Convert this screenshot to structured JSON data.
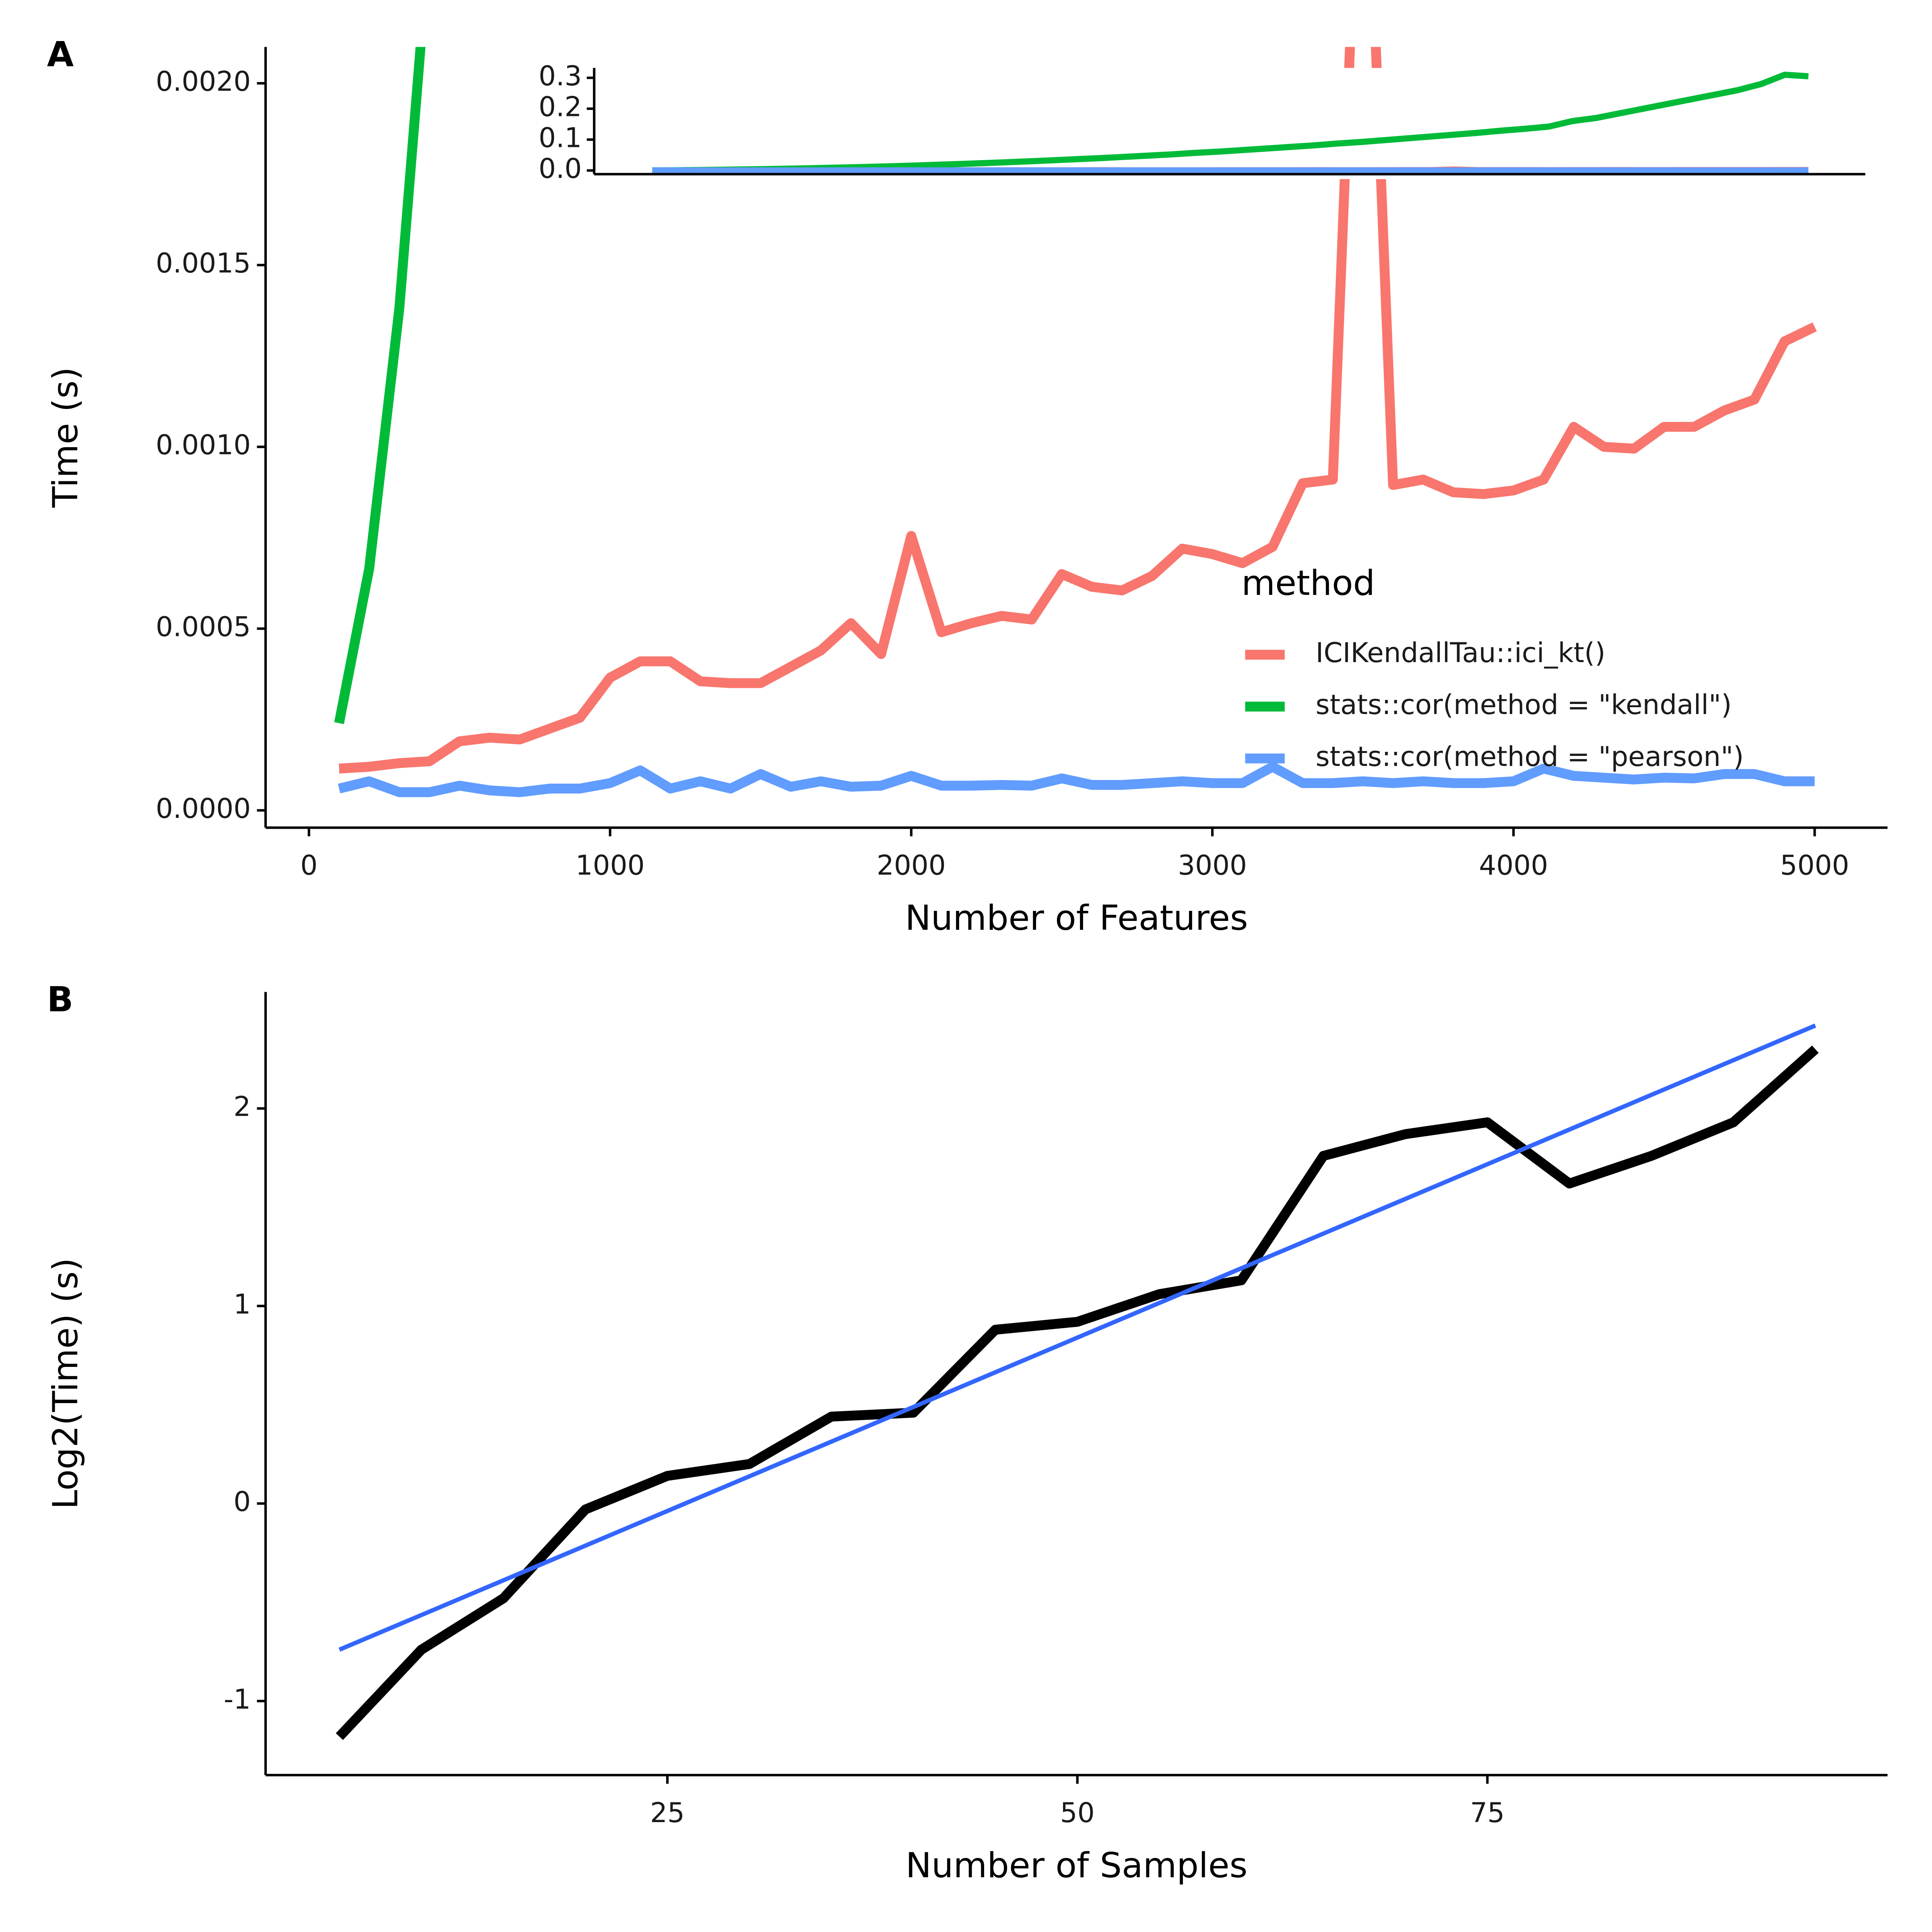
{
  "chart_data": [
    {
      "type": "line",
      "tag": "A",
      "xlabel": "Number of Features",
      "ylabel": "Time (s)",
      "x": [
        100,
        200,
        300,
        400,
        500,
        600,
        700,
        800,
        900,
        1000,
        1100,
        1200,
        1300,
        1400,
        1500,
        1600,
        1700,
        1800,
        1900,
        2000,
        2100,
        2200,
        2300,
        2400,
        2500,
        2600,
        2700,
        2800,
        2900,
        3000,
        3100,
        3200,
        3300,
        3400,
        3500,
        3600,
        3700,
        3800,
        3900,
        4000,
        4100,
        4200,
        4300,
        4400,
        4500,
        4600,
        4700,
        4800,
        4900,
        5000
      ],
      "xlim": [
        -144,
        5242
      ],
      "ylim": [
        -4.75e-05,
        0.0021
      ],
      "xticks": [
        0,
        1000,
        2000,
        3000,
        4000,
        5000
      ],
      "yticks": [
        {
          "value": 0,
          "label": "0.0000"
        },
        {
          "value": 0.0005,
          "label": "0.0005"
        },
        {
          "value": 0.001,
          "label": "0.0010"
        },
        {
          "value": 0.0015,
          "label": "0.0015"
        },
        {
          "value": 0.002,
          "label": "0.0020"
        }
      ],
      "legend_title": "method",
      "series": [
        {
          "name": "ICIKendallTau::ici_kt()",
          "color": "#f8766d",
          "values": [
            0.000115,
            0.00012,
            0.00013,
            0.000135,
            0.00019,
            0.0002,
            0.000195,
            0.000225,
            0.000255,
            0.000365,
            0.00041,
            0.00041,
            0.000355,
            0.00035,
            0.00035,
            0.000395,
            0.00044,
            0.000515,
            0.00043,
            0.000755,
            0.00049,
            0.000515,
            0.000535,
            0.000525,
            0.00065,
            0.000615,
            0.000605,
            0.000645,
            0.00072,
            0.000705,
            0.00068,
            0.000725,
            0.0009,
            0.00091,
            0.003,
            0.000895,
            0.00091,
            0.000875,
            0.00087,
            0.00088,
            0.00091,
            0.001055,
            0.001,
            0.000995,
            0.001055,
            0.001055,
            0.0011,
            0.00113,
            0.00129,
            0.00133
          ]
        },
        {
          "name": "stats::cor(method = \"kendall\")",
          "color": "#00ba38",
          "values": [
            0.00024,
            0.000665,
            0.00138,
            0.0024,
            0.0035,
            0.0047,
            0.0061,
            0.0077,
            0.0094,
            0.0113,
            0.0134,
            0.0157,
            0.0182,
            0.0208,
            0.0236,
            0.0266,
            0.0297,
            0.0331,
            0.0366,
            0.04,
            0.044,
            0.048,
            0.052,
            0.057,
            0.061,
            0.066,
            0.071,
            0.076,
            0.081,
            0.087,
            0.092,
            0.098,
            0.104,
            0.11,
            0.116,
            0.122,
            0.129,
            0.135,
            0.142,
            0.16,
            0.17,
            0.185,
            0.2,
            0.215,
            0.23,
            0.245,
            0.26,
            0.28,
            0.31,
            0.305
          ]
        },
        {
          "name": "stats::cor(method = \"pearson\")",
          "color": "#619cff",
          "values": [
            6e-05,
            8e-05,
            5e-05,
            5e-05,
            6.8e-05,
            5.5e-05,
            5e-05,
            6e-05,
            6e-05,
            7.5e-05,
            0.00011,
            6e-05,
            8e-05,
            6e-05,
            0.0001,
            6.5e-05,
            8e-05,
            6.5e-05,
            6.8e-05,
            9.5e-05,
            6.8e-05,
            6.8e-05,
            7e-05,
            6.8e-05,
            8.8e-05,
            7e-05,
            7e-05,
            7.5e-05,
            8e-05,
            7.5e-05,
            7.5e-05,
            0.00012,
            7.5e-05,
            7.5e-05,
            8e-05,
            7.5e-05,
            8e-05,
            7.5e-05,
            7.5e-05,
            8e-05,
            0.000115,
            9.5e-05,
            9e-05,
            8.5e-05,
            9e-05,
            8.8e-05,
            0.0001,
            0.0001,
            8e-05,
            8e-05
          ]
        }
      ],
      "inset": {
        "xlim": [
          -146,
          5241
        ],
        "ylim": [
          -0.012,
          0.332
        ],
        "yticks": [
          {
            "value": 0,
            "label": "0.0"
          },
          {
            "value": 0.1,
            "label": "0.1"
          },
          {
            "value": 0.2,
            "label": "0.2"
          },
          {
            "value": 0.3,
            "label": "0.3"
          }
        ]
      }
    },
    {
      "type": "line",
      "tag": "B",
      "xlabel": "Number of Samples",
      "ylabel": "Log2(Time) (s)",
      "x": [
        5,
        10,
        15,
        20,
        25,
        30,
        35,
        40,
        45,
        50,
        55,
        60,
        65,
        70,
        75,
        80,
        85,
        90,
        95
      ],
      "values": [
        -1.18,
        -0.74,
        -0.48,
        -0.03,
        0.14,
        0.2,
        0.44,
        0.46,
        0.88,
        0.92,
        1.06,
        1.13,
        1.76,
        1.87,
        1.93,
        1.62,
        1.76,
        1.93,
        2.3
      ],
      "color": "#000000",
      "xlim": [
        0.5,
        99.4
      ],
      "ylim": [
        -1.375,
        2.59
      ],
      "xticks": [
        25,
        50,
        75
      ],
      "yticks": [
        -1,
        0,
        1,
        2
      ],
      "trend": {
        "x": [
          5,
          95
        ],
        "values": [
          -0.74,
          2.42
        ],
        "color": "#3366ff"
      }
    }
  ]
}
